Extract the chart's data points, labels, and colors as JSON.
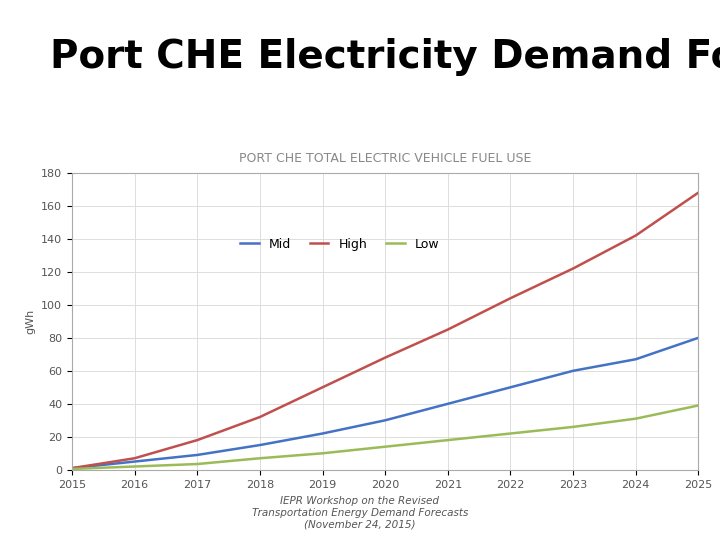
{
  "title": "Port CHE Electricity Demand Forecast",
  "chart_title": "PORT CHE TOTAL ELECTRIC VEHICLE FUEL USE",
  "ylabel": "gWh",
  "footer": "IEPR Workshop on the Revised\nTransportation Energy Demand Forecasts\n(November 24, 2015)",
  "years": [
    2015,
    2016,
    2017,
    2018,
    2019,
    2020,
    2021,
    2022,
    2023,
    2024,
    2025
  ],
  "mid": [
    1,
    5,
    9,
    15,
    22,
    30,
    40,
    50,
    60,
    67,
    80
  ],
  "high": [
    1,
    7,
    18,
    32,
    50,
    68,
    85,
    104,
    122,
    142,
    168
  ],
  "low": [
    0.5,
    2,
    3.5,
    7,
    10,
    14,
    18,
    22,
    26,
    31,
    39
  ],
  "mid_color": "#4472C4",
  "high_color": "#C0504D",
  "low_color": "#9BBB59",
  "ylim": [
    0,
    180
  ],
  "yticks": [
    0,
    20,
    40,
    60,
    80,
    100,
    120,
    140,
    160,
    180
  ],
  "bg_color": "#FFFFFF",
  "chart_bg": "#FFFFFF",
  "border_color": "#AAAAAA",
  "grid_color": "#DDDDDD",
  "title_fontsize": 28,
  "chart_title_fontsize": 9,
  "axis_fontsize": 8,
  "legend_fontsize": 9,
  "footer_fontsize": 7.5,
  "line_width": 1.8
}
